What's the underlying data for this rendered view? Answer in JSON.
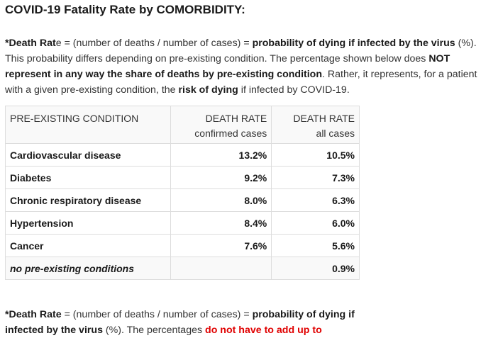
{
  "title": "COVID-19 Fatality Rate by COMORBIDITY:",
  "intro": {
    "p1": "*Death Rat",
    "p2": "e = (number of deaths / number of cases) = ",
    "p3": "probability of dying if infected by the virus",
    "p4": " (%). This probability differs depending on pre-existing condition. The percentage shown below does ",
    "p5": "NOT represent in any way the share of deaths by pre-existing condition",
    "p6": ". Rather, it represents, for a patient with a given pre-existing condition, the ",
    "p7": "risk of dying",
    "p8": " if infected by COVID-19."
  },
  "table": {
    "headers": {
      "condition": "PRE-EXISTING CONDITION",
      "confirmed_main": "DEATH RATE",
      "confirmed_sub": "confirmed cases",
      "all_main": "DEATH RATE",
      "all_sub": "all cases"
    },
    "rows": [
      {
        "condition": "Cardiovascular disease",
        "confirmed": "13.2%",
        "all": "10.5%"
      },
      {
        "condition": "Diabetes",
        "confirmed": "9.2%",
        "all": "7.3%"
      },
      {
        "condition": "Chronic respiratory disease",
        "confirmed": "8.0%",
        "all": "6.3%"
      },
      {
        "condition": "Hypertension",
        "confirmed": "8.4%",
        "all": "6.0%"
      },
      {
        "condition": "Cancer",
        "confirmed": "7.6%",
        "all": "5.6%"
      },
      {
        "condition": "no pre-existing conditions",
        "confirmed": "",
        "all": "0.9%"
      }
    ]
  },
  "note": {
    "p1": "*Death Rate",
    "p2": " = (number of deaths / number of cases) = ",
    "p3": "probability of dying if infected by the virus",
    "p4": " (%). The percentages ",
    "p5": "do not have to add up to"
  }
}
